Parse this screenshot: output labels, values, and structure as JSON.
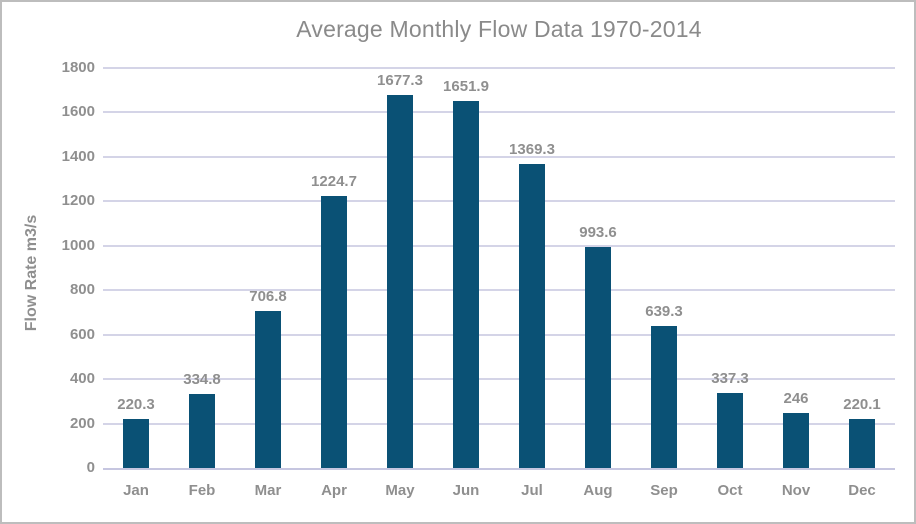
{
  "window": {
    "background": "#ffffff",
    "border_color": "#bdbdbd"
  },
  "chart_data": {
    "type": "bar",
    "title": "Average Monthly Flow Data 1970-2014",
    "categories": [
      "Jan",
      "Feb",
      "Mar",
      "Apr",
      "May",
      "Jun",
      "Jul",
      "Aug",
      "Sep",
      "Oct",
      "Nov",
      "Dec"
    ],
    "values": [
      220.3,
      334.8,
      706.8,
      1224.7,
      1677.3,
      1651.9,
      1369.3,
      993.6,
      639.3,
      337.3,
      246,
      220.1
    ],
    "value_labels": [
      "220.3",
      "334.8",
      "706.8",
      "1224.7",
      "1677.3",
      "1651.9",
      "1369.3",
      "993.6",
      "639.3",
      "337.3",
      "246",
      "220.1"
    ],
    "xlabel": "",
    "ylabel": "Flow Rate m3/s",
    "ylim": [
      0,
      1800
    ],
    "ytick_interval": 200,
    "ytick_labels": [
      "0",
      "200",
      "400",
      "600",
      "800",
      "1000",
      "1200",
      "1400",
      "1600",
      "1800"
    ],
    "grid": true,
    "legend": false,
    "colors": {
      "bar": "#0a5175",
      "gridline": "#d4d4e7",
      "axis_line": "#c6c6e0",
      "label_text": "#8f8f8f",
      "title_text": "#8a8a8a"
    }
  }
}
